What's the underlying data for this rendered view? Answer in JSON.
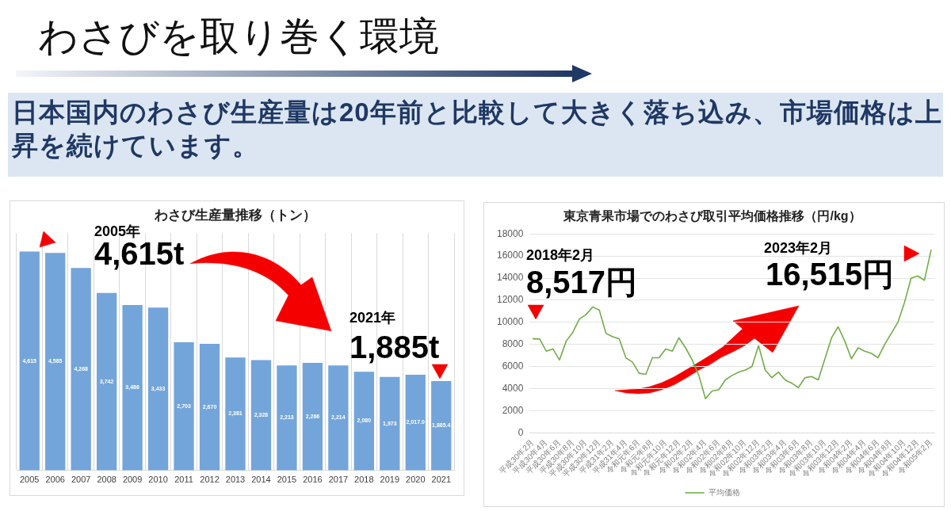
{
  "chart_data": [
    {
      "type": "other",
      "title": "わさびを取り巻く環境",
      "subtitle": "日本国内のわさび生産量は20年前と比較して大きく落ち込み、市場価格は上昇を続けています。"
    },
    {
      "type": "bar",
      "title": "わさび生産量推移（トン）",
      "categories": [
        "2005",
        "2006",
        "2007",
        "2008",
        "2009",
        "2010",
        "2011",
        "2012",
        "2013",
        "2014",
        "2015",
        "2016",
        "2017",
        "2018",
        "2019",
        "2020",
        "2021"
      ],
      "values": [
        4615,
        4585,
        4268,
        3742,
        3486,
        3433,
        2703,
        2670,
        2381,
        2328,
        2213,
        2266,
        2214,
        2080,
        1973,
        2017.0,
        1885.4
      ],
      "value_labels": [
        "4,615",
        "4,585",
        "4,268",
        "3,742",
        "3,486",
        "3,433",
        "2,703",
        "2,670",
        "2,381",
        "2,328",
        "2,213",
        "2,266",
        "2,214",
        "2,080",
        "1,973",
        "2,017.0",
        "1,885.4"
      ],
      "color": "#73a5da",
      "grid": "x",
      "annotations": [
        "2005年",
        "4,615t",
        "2021年",
        "1,885t"
      ]
    },
    {
      "type": "line",
      "title": "東京青果市場でのわさび取引平均価格推移（円/kg）",
      "categories": [
        "平成30年2月",
        null,
        "平成30年4月",
        null,
        "平成30年6月",
        null,
        "平成30年8月",
        null,
        "平成30年10月",
        null,
        "平成30年12月",
        null,
        "平成31年2月",
        null,
        "平成31年4月",
        null,
        "令和元年6月",
        null,
        "令和元年8月",
        null,
        "令和元年10月",
        null,
        "令和元年12月",
        null,
        "令和02年2月",
        null,
        "令和02年4月",
        null,
        "令和02年6月",
        null,
        "令和02年8月",
        null,
        "令和02年10月",
        null,
        "令和02年12月",
        null,
        "令和03年2月",
        null,
        "令和03年4月",
        null,
        "令和03年6月",
        null,
        "令和03年8月",
        null,
        "令和03年10月",
        null,
        "令和03年12月",
        null,
        "令和04年2月",
        null,
        "令和04年4月",
        null,
        "令和04年6月",
        null,
        "令和04年8月",
        null,
        "令和04年10月",
        null,
        "令和04年12月",
        null,
        "令和05年2月"
      ],
      "series": [
        {
          "name": "平均価格",
          "color": "#70ad47",
          "values": [
            8517,
            8500,
            7400,
            7600,
            6600,
            8300,
            9100,
            10300,
            10700,
            11400,
            11100,
            9000,
            8700,
            8500,
            6800,
            6400,
            5400,
            5300,
            6800,
            6800,
            7600,
            7400,
            8600,
            7700,
            6600,
            5200,
            3100,
            3800,
            3900,
            4800,
            5200,
            5500,
            5700,
            6000,
            7900,
            5700,
            5000,
            5500,
            4800,
            4500,
            4100,
            5000,
            5100,
            4800,
            6700,
            8600,
            9600,
            8300,
            6700,
            7700,
            7400,
            7200,
            6800,
            8000,
            9000,
            10000,
            11800,
            14000,
            14200,
            13800,
            16515
          ]
        }
      ],
      "ylim": [
        0,
        18000
      ],
      "yticks": [
        0,
        2000,
        4000,
        6000,
        8000,
        10000,
        12000,
        14000,
        16000,
        18000
      ],
      "grid": "y",
      "legend": "bottom",
      "marker": "none",
      "annotations": [
        "2018年2月",
        "8,517円",
        "2023年2月",
        "16,515円"
      ]
    }
  ]
}
